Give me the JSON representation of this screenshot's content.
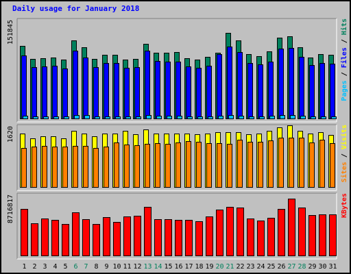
{
  "title": "Daily usage for January 2018",
  "colors": {
    "hits": "#00805c",
    "files": "#0000ff",
    "pages": "#00c0ff",
    "visits": "#ffff00",
    "sites": "#ff8000",
    "kbytes": "#ff0000",
    "title": "#0000ff",
    "weekend": "#00805c",
    "plot_bg": "#c0c0c0"
  },
  "chart_data": [
    {
      "type": "bar",
      "panel": "hits",
      "y_max_label": "151845",
      "legend": [
        {
          "text": "Pages",
          "color": "#00c0ff"
        },
        {
          "text": "Files",
          "color": "#0000ff"
        },
        {
          "text": "Hits",
          "color": "#00805c"
        }
      ],
      "categories": [
        "1",
        "2",
        "3",
        "4",
        "5",
        "6",
        "7",
        "8",
        "9",
        "10",
        "11",
        "12",
        "13",
        "14",
        "15",
        "16",
        "17",
        "18",
        "19",
        "20",
        "21",
        "22",
        "23",
        "24",
        "25",
        "26",
        "27",
        "28",
        "29",
        "30",
        "31"
      ],
      "ylim": [
        0,
        151845
      ],
      "series": [
        {
          "name": "Hits",
          "values": [
            114000,
            93800,
            95000,
            96000,
            92000,
            122000,
            111000,
            93500,
            100000,
            100000,
            92600,
            93200,
            117000,
            103000,
            103000,
            104000,
            95000,
            92000,
            97000,
            103000,
            134000,
            122000,
            101000,
            98000,
            105000,
            126000,
            128000,
            112000,
            96000,
            101000,
            99400
          ]
        },
        {
          "name": "Files",
          "values": [
            98800,
            81000,
            81700,
            82700,
            79000,
            106000,
            95400,
            80200,
            87600,
            87500,
            79600,
            80200,
            106000,
            90100,
            89500,
            89600,
            81600,
            79600,
            82700,
            101000,
            113000,
            104000,
            87300,
            85300,
            88700,
            109000,
            110000,
            96500,
            83500,
            87200,
            86400
          ]
        },
        {
          "name": "Pages",
          "values": [
            4800,
            4500,
            4500,
            4700,
            4500,
            6000,
            6500,
            4400,
            4600,
            4500,
            4500,
            4400,
            6500,
            5500,
            4800,
            5500,
            4400,
            4400,
            4600,
            5100,
            6000,
            5300,
            4500,
            4400,
            4900,
            6500,
            6800,
            5800,
            4600,
            4600,
            4500
          ]
        }
      ]
    },
    {
      "type": "bar",
      "panel": "visits",
      "y_max_label": "1620",
      "legend": [
        {
          "text": "Sites",
          "color": "#ff8000"
        },
        {
          "text": "Visits",
          "color": "#ffff00"
        }
      ],
      "categories": [
        "1",
        "2",
        "3",
        "4",
        "5",
        "6",
        "7",
        "8",
        "9",
        "10",
        "11",
        "12",
        "13",
        "14",
        "15",
        "16",
        "17",
        "18",
        "19",
        "20",
        "21",
        "22",
        "23",
        "24",
        "25",
        "26",
        "27",
        "28",
        "29",
        "30",
        "31"
      ],
      "ylim": [
        0,
        1620
      ],
      "series": [
        {
          "name": "Visits",
          "values": [
            1460,
            1320,
            1380,
            1380,
            1330,
            1520,
            1460,
            1380,
            1460,
            1460,
            1520,
            1440,
            1570,
            1460,
            1460,
            1460,
            1460,
            1440,
            1460,
            1490,
            1490,
            1490,
            1440,
            1460,
            1520,
            1620,
            1680,
            1520,
            1460,
            1490,
            1420
          ]
        },
        {
          "name": "Sites",
          "values": [
            1060,
            1110,
            1120,
            1100,
            1110,
            1130,
            1130,
            1070,
            1100,
            1210,
            1160,
            1150,
            1170,
            1200,
            1180,
            1210,
            1250,
            1230,
            1200,
            1200,
            1180,
            1280,
            1230,
            1230,
            1270,
            1340,
            1350,
            1350,
            1220,
            1280,
            1200
          ]
        }
      ]
    },
    {
      "type": "bar",
      "panel": "kbytes",
      "y_max_label": "8716817",
      "legend": [
        {
          "text": "KBytes",
          "color": "#ff0000"
        }
      ],
      "categories": [
        "1",
        "2",
        "3",
        "4",
        "5",
        "6",
        "7",
        "8",
        "9",
        "10",
        "11",
        "12",
        "13",
        "14",
        "15",
        "16",
        "17",
        "18",
        "19",
        "20",
        "21",
        "22",
        "23",
        "24",
        "25",
        "26",
        "27",
        "28",
        "29",
        "30",
        "31"
      ],
      "ylim": [
        0,
        8716817
      ],
      "weekend_days": [
        "6",
        "7",
        "13",
        "14",
        "20",
        "21",
        "27",
        "28"
      ],
      "series": [
        {
          "name": "KBytes",
          "values": [
            6880000,
            4800000,
            5400000,
            5270000,
            4640000,
            6360000,
            5370000,
            4640000,
            5620000,
            5000000,
            5760000,
            5800000,
            7100000,
            5380000,
            5390000,
            5270000,
            5240000,
            5050000,
            5760000,
            6700000,
            7090000,
            7050000,
            5490000,
            5170000,
            5550000,
            6880000,
            8360000,
            6990000,
            5950000,
            6000000,
            6080000
          ]
        }
      ]
    }
  ]
}
